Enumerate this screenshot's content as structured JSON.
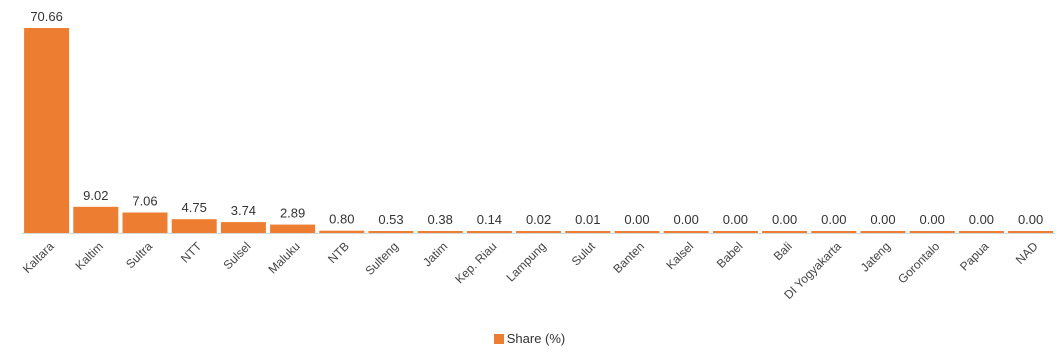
{
  "chart_data": {
    "type": "bar",
    "categories": [
      "Kaltara",
      "Kaltim",
      "Sultra",
      "NTT",
      "Sulsel",
      "Maluku",
      "NTB",
      "Sulteng",
      "Jatim",
      "Kep. Riau",
      "Lampung",
      "Sulut",
      "Banten",
      "Kalsel",
      "Babel",
      "Bali",
      "DI Yogyakarta",
      "Jateng",
      "Gorontalo",
      "Papua",
      "NAD"
    ],
    "value_labels": [
      "70.66",
      "9.02",
      "7.06",
      "4.75",
      "3.74",
      "2.89",
      "0.80",
      "0.53",
      "0.38",
      "0.14",
      "0.02",
      "0.01",
      "0.00",
      "0.00",
      "0.00",
      "0.00",
      "0.00",
      "0.00",
      "0.00",
      "0.00",
      "0.00"
    ],
    "series": [
      {
        "name": "Share (%)",
        "color": "#ED7D31",
        "values": [
          70.66,
          9.02,
          7.06,
          4.75,
          3.74,
          2.89,
          0.8,
          0.53,
          0.38,
          0.14,
          0.02,
          0.01,
          0.0,
          0.0,
          0.0,
          0.0,
          0.0,
          0.0,
          0.0,
          0.0,
          0.0
        ]
      }
    ],
    "ylim": [
      0,
      70.66
    ],
    "grid": false,
    "legend_position": "bottom"
  }
}
